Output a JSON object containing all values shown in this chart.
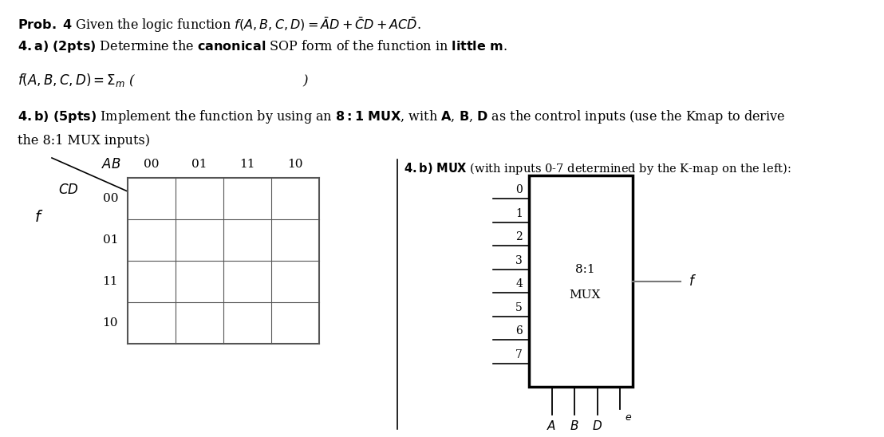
{
  "background_color": "#ffffff",
  "fig_width": 11.08,
  "fig_height": 5.48,
  "dpi": 100,
  "kmap_col_labels": [
    "00",
    "01",
    "11",
    "10"
  ],
  "kmap_row_labels": [
    "00",
    "01",
    "11",
    "10"
  ],
  "mux_inputs": [
    "0",
    "1",
    "2",
    "3",
    "4",
    "5",
    "6",
    "7"
  ],
  "mux_box_label1": "8:1",
  "mux_box_label2": "MUX"
}
